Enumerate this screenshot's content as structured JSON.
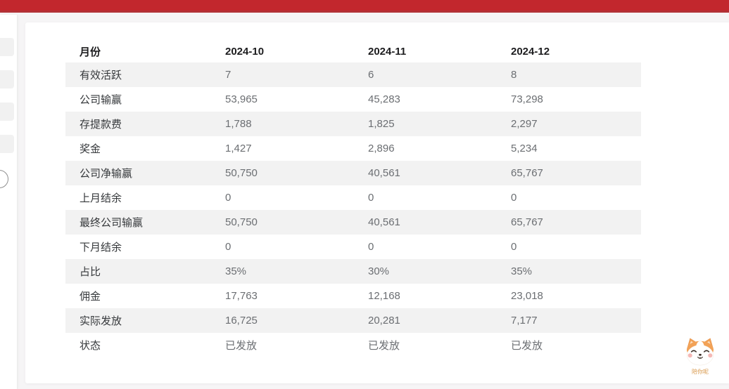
{
  "topbar": {
    "color": "#c2272d"
  },
  "sidebar": {
    "collapsed": true,
    "item_count": 4
  },
  "table": {
    "columns": [
      "月份",
      "2024-10",
      "2024-11",
      "2024-12"
    ],
    "rows": [
      {
        "label": "有效活跃",
        "values": [
          "7",
          "6",
          "8"
        ]
      },
      {
        "label": "公司输赢",
        "values": [
          "53,965",
          "45,283",
          "73,298"
        ]
      },
      {
        "label": "存提款费",
        "values": [
          "1,788",
          "1,825",
          "2,297"
        ]
      },
      {
        "label": "奖金",
        "values": [
          "1,427",
          "2,896",
          "5,234"
        ]
      },
      {
        "label": "公司净输赢",
        "values": [
          "50,750",
          "40,561",
          "65,767"
        ]
      },
      {
        "label": "上月结余",
        "values": [
          "0",
          "0",
          "0"
        ]
      },
      {
        "label": "最终公司输赢",
        "values": [
          "50,750",
          "40,561",
          "65,767"
        ]
      },
      {
        "label": "下月结余",
        "values": [
          "0",
          "0",
          "0"
        ]
      },
      {
        "label": "占比",
        "values": [
          "35%",
          "30%",
          "35%"
        ]
      },
      {
        "label": "佣金",
        "values": [
          "17,763",
          "12,168",
          "23,018"
        ]
      },
      {
        "label": "实际发放",
        "values": [
          "16,725",
          "20,281",
          "7,177"
        ]
      },
      {
        "label": "状态",
        "values": [
          "已发放",
          "已发放",
          "已发放"
        ]
      }
    ],
    "stripe_color": "#f2f2f2"
  },
  "mascot": {
    "caption": "陪你呢",
    "colors": {
      "fur": "#f2a257",
      "cheek": "#f5b8b5"
    }
  }
}
